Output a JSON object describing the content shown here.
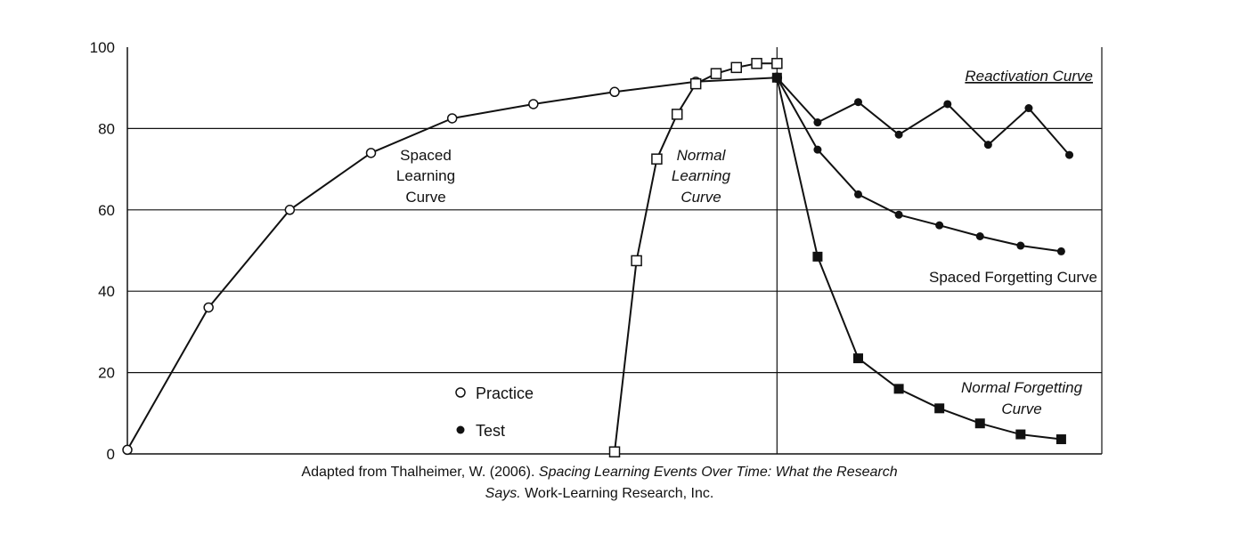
{
  "chart_data": {
    "type": "line",
    "title": "",
    "xlabel": "",
    "ylabel": "",
    "ylim": [
      0,
      100
    ],
    "y_ticks": [
      0,
      20,
      40,
      60,
      80,
      100
    ],
    "grid": "horizontal",
    "series": [
      {
        "key": "spaced_learning",
        "marker": "open-circle",
        "points": [
          [
            0,
            1
          ],
          [
            1,
            36
          ],
          [
            2,
            60
          ],
          [
            3,
            74
          ],
          [
            4,
            82.5
          ],
          [
            5,
            86
          ],
          [
            6,
            89
          ],
          [
            7,
            91.5
          ],
          [
            8,
            92.5
          ]
        ]
      },
      {
        "key": "normal_learning",
        "marker": "open-square",
        "points": [
          [
            6,
            0.5
          ],
          [
            6.27,
            47.5
          ],
          [
            6.52,
            72.5
          ],
          [
            6.77,
            83.5
          ],
          [
            7.0,
            91
          ],
          [
            7.25,
            93.5
          ],
          [
            7.5,
            95
          ],
          [
            7.75,
            96
          ],
          [
            8.0,
            96
          ]
        ]
      },
      {
        "key": "reactivation",
        "marker": "filled-circle",
        "points": [
          [
            8,
            92.5
          ],
          [
            8.5,
            81.5
          ],
          [
            9,
            86.5
          ],
          [
            9.5,
            78.5
          ],
          [
            10.1,
            86
          ],
          [
            10.6,
            76
          ],
          [
            11.1,
            85
          ],
          [
            11.6,
            73.5
          ]
        ]
      },
      {
        "key": "spaced_forgetting",
        "marker": "filled-circle",
        "points": [
          [
            8,
            92.5
          ],
          [
            8.5,
            74.8
          ],
          [
            9.0,
            63.8
          ],
          [
            9.5,
            58.8
          ],
          [
            10.0,
            56.2
          ],
          [
            10.5,
            53.5
          ],
          [
            11.0,
            51.2
          ],
          [
            11.5,
            49.8
          ]
        ]
      },
      {
        "key": "normal_forgetting",
        "marker": "filled-square",
        "points": [
          [
            8,
            92.5
          ],
          [
            8.5,
            48.5
          ],
          [
            9.0,
            23.5
          ],
          [
            9.5,
            16
          ],
          [
            10.0,
            11.2
          ],
          [
            10.5,
            7.5
          ],
          [
            11.0,
            4.8
          ],
          [
            11.5,
            3.6
          ]
        ]
      }
    ],
    "annotations": {
      "spaced_learning": [
        "Spaced",
        "Learning",
        "Curve"
      ],
      "normal_learning": [
        "Normal",
        "Learning",
        "Curve"
      ],
      "reactivation": "Reactivation Curve",
      "spaced_forgetting": "Spaced Forgetting Curve",
      "normal_forgetting": [
        "Normal Forgetting",
        "Curve"
      ]
    },
    "legend": [
      {
        "marker": "open-circle",
        "label": "Practice"
      },
      {
        "marker": "filled-circle",
        "label": "Test"
      }
    ],
    "caption": {
      "line1_normal": "Adapted from Thalheimer, W. (2006). ",
      "line1_italic": "Spacing Learning Events Over Time: What the Research",
      "line2_italic": "Says.",
      "line2_normal": " Work-Learning Research, Inc."
    }
  }
}
